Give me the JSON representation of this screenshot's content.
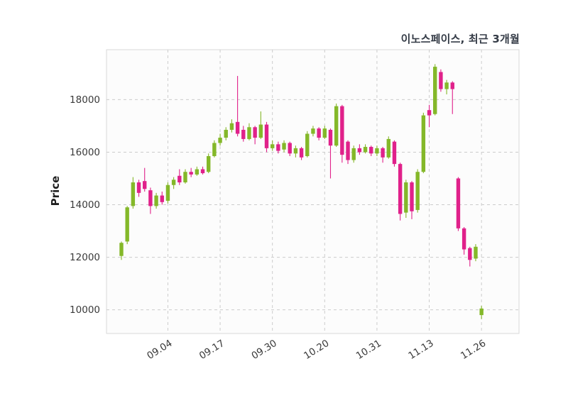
{
  "title": "이노스페이스, 최근 3개월",
  "chart_data": {
    "type": "candlestick",
    "title": "이노스페이스, 최근 3개월",
    "ylabel": "Price",
    "ylim": [
      9100,
      19900
    ],
    "yticks": [
      10000,
      12000,
      14000,
      16000,
      18000
    ],
    "xtick_labels": [
      "09.04",
      "09.17",
      "09.30",
      "10.20",
      "10.31",
      "11.13",
      "11.26"
    ],
    "xtick_indices": [
      8,
      17,
      26,
      35,
      44,
      53,
      62
    ],
    "up_color": "#84b829",
    "down_color": "#e0218a",
    "grid_color": "#cccccc",
    "grid_style": "dashed",
    "text_color": "#3a3a3a",
    "title_color": "#343b46",
    "plot_bg": "#fcfcfc",
    "border_color": "#d9d9d9",
    "candles": [
      [
        "08.25",
        12050,
        12600,
        11900,
        12550
      ],
      [
        "08.26",
        12600,
        13950,
        12500,
        13900
      ],
      [
        "08.27",
        13950,
        15050,
        13850,
        14850
      ],
      [
        "08.28",
        14850,
        14950,
        14300,
        14450
      ],
      [
        "08.29",
        14900,
        15400,
        14500,
        14600
      ],
      [
        "09.01",
        14550,
        14650,
        13650,
        13950
      ],
      [
        "09.02",
        13950,
        14450,
        13850,
        14350
      ],
      [
        "09.03",
        14350,
        14500,
        14000,
        14100
      ],
      [
        "09.04",
        14150,
        14850,
        14050,
        14750
      ],
      [
        "09.05",
        14750,
        15050,
        14600,
        14950
      ],
      [
        "09.08",
        15100,
        15350,
        14750,
        14850
      ],
      [
        "09.09",
        14850,
        15350,
        14800,
        15250
      ],
      [
        "09.10",
        15250,
        15400,
        15050,
        15150
      ],
      [
        "09.11",
        15150,
        15450,
        15100,
        15350
      ],
      [
        "09.12",
        15350,
        15450,
        15150,
        15200
      ],
      [
        "09.15",
        15250,
        15950,
        15200,
        15850
      ],
      [
        "09.16",
        15850,
        16450,
        15800,
        16350
      ],
      [
        "09.17",
        16350,
        16700,
        16250,
        16550
      ],
      [
        "09.18",
        16550,
        16950,
        16450,
        16850
      ],
      [
        "09.19",
        16850,
        17250,
        16750,
        17100
      ],
      [
        "09.22",
        17150,
        18900,
        16600,
        16700
      ],
      [
        "09.23",
        16850,
        17000,
        16400,
        16500
      ],
      [
        "09.24",
        16500,
        17100,
        16450,
        16950
      ],
      [
        "09.25",
        16950,
        17000,
        16300,
        16550
      ],
      [
        "09.26",
        16550,
        17550,
        16500,
        17050
      ],
      [
        "09.29",
        17050,
        17150,
        16000,
        16150
      ],
      [
        "09.30",
        16150,
        16450,
        16050,
        16300
      ],
      [
        "10.01",
        16300,
        16400,
        15950,
        16050
      ],
      [
        "10.02",
        16100,
        16450,
        16000,
        16350
      ],
      [
        "10.10",
        16350,
        16400,
        15850,
        15950
      ],
      [
        "10.13",
        15950,
        16250,
        15800,
        16150
      ],
      [
        "10.14",
        16150,
        16200,
        15700,
        15800
      ],
      [
        "10.15",
        15850,
        16800,
        15800,
        16700
      ],
      [
        "10.16",
        16700,
        17000,
        16600,
        16900
      ],
      [
        "10.17",
        16900,
        16950,
        16450,
        16550
      ],
      [
        "10.20",
        16550,
        17000,
        16500,
        16900
      ],
      [
        "10.21",
        16850,
        16900,
        15000,
        16250
      ],
      [
        "10.22",
        16250,
        17850,
        16200,
        17750
      ],
      [
        "10.23",
        17750,
        17800,
        15600,
        15900
      ],
      [
        "10.24",
        16400,
        16450,
        15550,
        15700
      ],
      [
        "10.27",
        15700,
        16250,
        15600,
        16150
      ],
      [
        "10.28",
        16150,
        16300,
        15900,
        16000
      ],
      [
        "10.29",
        16000,
        16300,
        15950,
        16200
      ],
      [
        "10.30",
        16200,
        16250,
        15850,
        15950
      ],
      [
        "10.31",
        15950,
        16250,
        15850,
        16150
      ],
      [
        "11.03",
        16150,
        16200,
        15600,
        15800
      ],
      [
        "11.04",
        15800,
        16600,
        15750,
        16500
      ],
      [
        "11.05",
        16400,
        16450,
        15450,
        15550
      ],
      [
        "11.06",
        15550,
        15600,
        13400,
        13650
      ],
      [
        "11.07",
        13700,
        14950,
        13500,
        14850
      ],
      [
        "11.10",
        14850,
        14900,
        13450,
        13750
      ],
      [
        "11.11",
        13800,
        15350,
        13700,
        15250
      ],
      [
        "11.12",
        15250,
        17500,
        15200,
        17400
      ],
      [
        "11.13",
        17600,
        17800,
        16950,
        17400
      ],
      [
        "11.14",
        17450,
        19350,
        17400,
        19250
      ],
      [
        "11.17",
        19050,
        19150,
        18300,
        18400
      ],
      [
        "11.18",
        18400,
        18750,
        18200,
        18650
      ],
      [
        "11.19",
        18650,
        18700,
        17450,
        18400
      ],
      [
        "11.20",
        15000,
        15050,
        13000,
        13100
      ],
      [
        "11.21",
        13100,
        13150,
        12100,
        12300
      ],
      [
        "11.24",
        12350,
        12400,
        11650,
        11900
      ],
      [
        "11.25",
        11950,
        12500,
        11850,
        12400
      ],
      [
        "11.26",
        9800,
        10150,
        9650,
        10050
      ]
    ]
  }
}
